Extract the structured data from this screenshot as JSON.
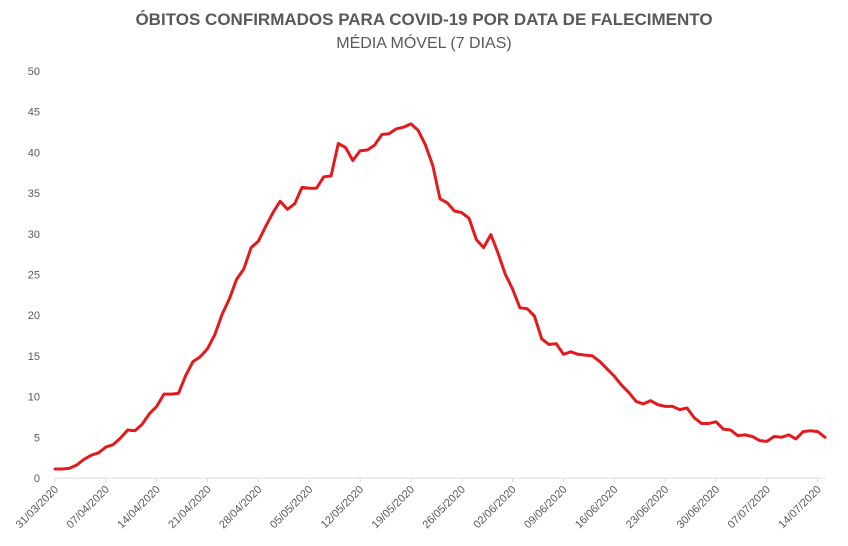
{
  "chart_data": {
    "type": "line",
    "title": "ÓBITOS CONFIRMADOS PARA COVID-19 POR DATA DE FALECIMENTO",
    "subtitle": "MÉDIA MÓVEL (7 DIAS)",
    "xlabel": "",
    "ylabel": "",
    "ylim": [
      0,
      50
    ],
    "yticks": [
      0,
      5,
      10,
      15,
      20,
      25,
      30,
      35,
      40,
      45,
      50
    ],
    "grid": false,
    "legend": "none",
    "x_start": "31/03/2020",
    "x_end": "15/07/2020",
    "xticks": [
      "31/03/2020",
      "07/04/2020",
      "14/04/2020",
      "21/04/2020",
      "28/04/2020",
      "05/05/2020",
      "12/05/2020",
      "19/05/2020",
      "26/05/2020",
      "02/06/2020",
      "09/06/2020",
      "16/06/2020",
      "23/06/2020",
      "30/06/2020",
      "07/07/2020",
      "14/07/2020"
    ],
    "series": [
      {
        "color": "#e31a1c",
        "values": [
          1.1,
          1.1,
          1.2,
          1.6,
          2.3,
          2.8,
          3.1,
          3.8,
          4.1,
          4.9,
          5.9,
          5.8,
          6.6,
          7.9,
          8.8,
          10.3,
          10.3,
          10.4,
          12.6,
          14.3,
          14.9,
          15.9,
          17.6,
          20.1,
          22.0,
          24.4,
          25.7,
          28.3,
          29.1,
          30.9,
          32.6,
          34.0,
          33.0,
          33.7,
          35.7,
          35.6,
          35.6,
          37.0,
          37.1,
          41.1,
          40.6,
          39.0,
          40.2,
          40.3,
          40.9,
          42.2,
          42.3,
          42.9,
          43.1,
          43.5,
          42.7,
          40.9,
          38.4,
          34.3,
          33.8,
          32.8,
          32.6,
          31.9,
          29.3,
          28.3,
          29.9,
          27.6,
          25.0,
          23.2,
          20.9,
          20.8,
          19.9,
          17.1,
          16.4,
          16.5,
          15.2,
          15.5,
          15.2,
          15.1,
          15.0,
          14.3,
          13.4,
          12.5,
          11.4,
          10.5,
          9.4,
          9.1,
          9.5,
          9.0,
          8.8,
          8.8,
          8.4,
          8.6,
          7.4,
          6.7,
          6.7,
          6.9,
          6.0,
          5.9,
          5.2,
          5.3,
          5.1,
          4.6,
          4.5,
          5.1,
          5.0,
          5.3,
          4.8,
          5.7,
          5.8,
          5.7,
          5.0
        ]
      }
    ]
  }
}
